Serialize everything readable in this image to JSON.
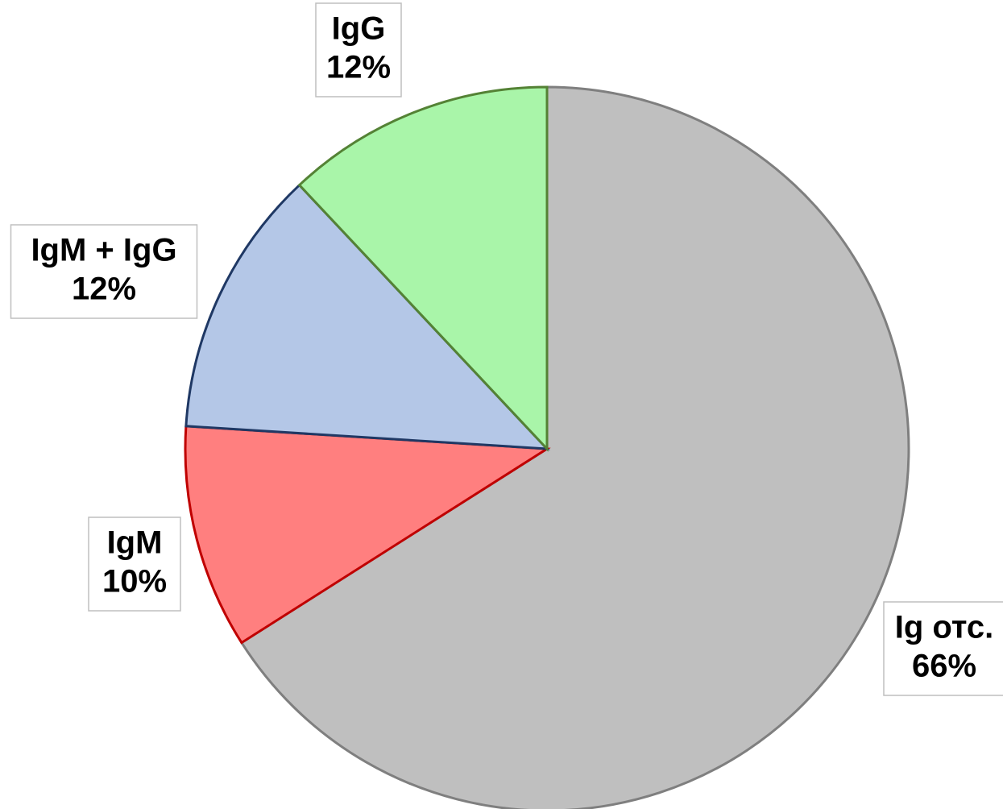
{
  "chart_data": {
    "type": "pie",
    "categories": [
      "Ig отс.",
      "IgM",
      "IgM + IgG",
      "IgG"
    ],
    "values": [
      66,
      10,
      12,
      12
    ],
    "value_labels": [
      "66%",
      "10%",
      "12%",
      "12%"
    ],
    "colors": [
      "#bfbfbf",
      "#ff7f7f",
      "#b4c7e7",
      "#a9f5a9"
    ],
    "edge_colors": [
      "#7f7f7f",
      "#c00000",
      "#1f3864",
      "#548235"
    ]
  }
}
